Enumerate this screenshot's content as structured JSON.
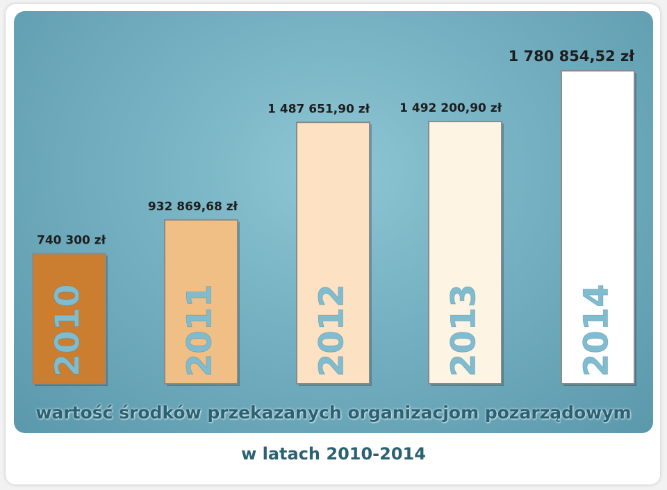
{
  "chart_data": {
    "type": "bar",
    "title": "wartość środków przekazanych organizacjom pozarządowym",
    "subtitle": "w latach 2010-2014",
    "categories": [
      "2010",
      "2011",
      "2012",
      "2013",
      "2014"
    ],
    "values": [
      740300.0,
      932869.68,
      1487651.9,
      1492200.9,
      1780854.52
    ],
    "value_labels": [
      "740 300 zł",
      "932 869,68 zł",
      "1 487 651,90 zł",
      "1 492 200,90 zł",
      "1 780 854,52 zł"
    ],
    "colors": [
      "#cc7e30",
      "#efbf85",
      "#fce1c3",
      "#fdf4e3",
      "#ffffff"
    ],
    "category_label_color": "#7fbcd0",
    "ylim": [
      0,
      1780854.52
    ]
  }
}
